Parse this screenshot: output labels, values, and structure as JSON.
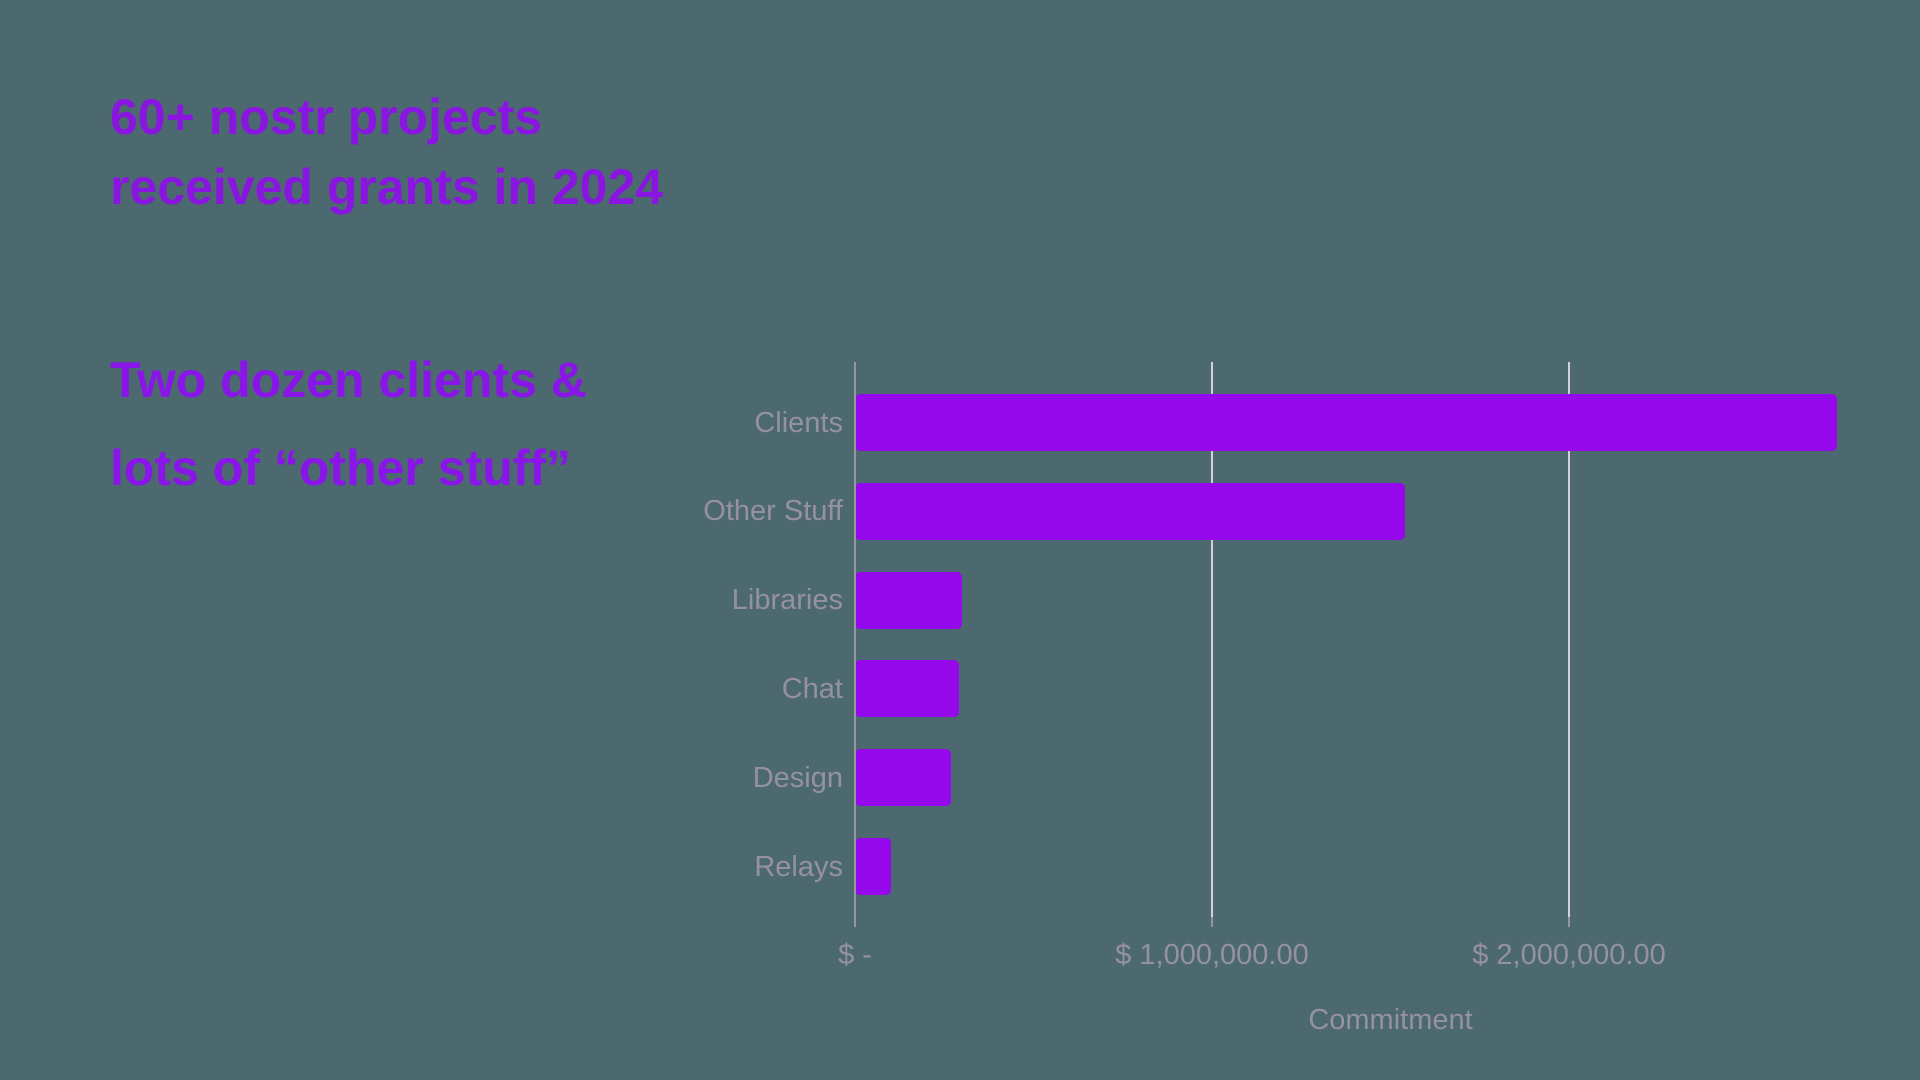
{
  "theme": {
    "background": "#4C6970",
    "heading_purple": "#8A15E0",
    "subheading_purple": "#8A15E8",
    "bar_purple": "#9508EC",
    "label_gray": "#95919E",
    "axis_line_gray": "#97949B",
    "gridline_color": "#D6CEDE"
  },
  "heading": {
    "line1": "60+ nostr projects",
    "line2": "received grants in 2024"
  },
  "subheading": {
    "line1": "Two dozen clients &",
    "line2": "lots of “other stuff”"
  },
  "chart_data": {
    "type": "bar",
    "orientation": "horizontal",
    "title": "",
    "xlabel": "Commitment",
    "ylabel": "",
    "categories": [
      "Clients",
      "Other Stuff",
      "Libraries",
      "Chat",
      "Design",
      "Relays"
    ],
    "values": [
      2750000,
      1540000,
      300000,
      290000,
      270000,
      100000
    ],
    "xlim": [
      0,
      3000000
    ],
    "x_ticks": [
      {
        "value": 0,
        "label": "$ -"
      },
      {
        "value": 1000000,
        "label": "$ 1,000,000.00"
      },
      {
        "value": 2000000,
        "label": "$ 2,000,000.00"
      }
    ],
    "grid": "vertical-only",
    "legend": "none"
  }
}
